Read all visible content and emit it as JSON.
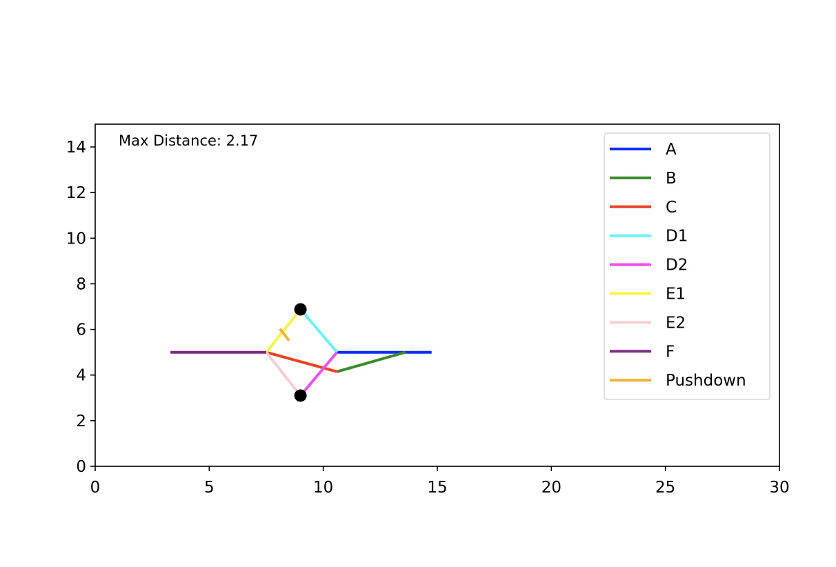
{
  "chart_data": {
    "type": "line",
    "title": "",
    "xlabel": "",
    "ylabel": "",
    "xlim": [
      0,
      30
    ],
    "ylim": [
      0,
      15
    ],
    "x_ticks": [
      0,
      5,
      10,
      15,
      20,
      25,
      30
    ],
    "y_ticks": [
      0,
      2,
      4,
      6,
      8,
      10,
      12,
      14
    ],
    "grid": false,
    "legend_position": "top-right",
    "annotation": "Max Distance: 2.17",
    "series": [
      {
        "name": "A",
        "color": "#0a2cf5",
        "points": [
          [
            10.6,
            5.0
          ],
          [
            14.75,
            5.0
          ]
        ]
      },
      {
        "name": "B",
        "color": "#3a8a2a",
        "points": [
          [
            10.6,
            4.15
          ],
          [
            13.6,
            5.0
          ]
        ]
      },
      {
        "name": "C",
        "color": "#ec4025",
        "points": [
          [
            7.5,
            5.0
          ],
          [
            10.6,
            4.15
          ]
        ]
      },
      {
        "name": "D1",
        "color": "#64f5f8",
        "points": [
          [
            9.0,
            6.88
          ],
          [
            10.6,
            5.0
          ]
        ]
      },
      {
        "name": "D2",
        "color": "#f04ef3",
        "points": [
          [
            9.0,
            3.1
          ],
          [
            10.6,
            5.0
          ]
        ]
      },
      {
        "name": "E1",
        "color": "#fbf542",
        "points": [
          [
            7.5,
            5.0
          ],
          [
            9.0,
            6.88
          ]
        ]
      },
      {
        "name": "E2",
        "color": "#f6cdd1",
        "points": [
          [
            7.5,
            5.0
          ],
          [
            9.0,
            3.1
          ]
        ]
      },
      {
        "name": "F",
        "color": "#7d2a89",
        "points": [
          [
            3.3,
            5.0
          ],
          [
            7.5,
            5.0
          ]
        ]
      },
      {
        "name": "Pushdown",
        "color": "#f4b23b",
        "points": [
          [
            8.1,
            6.03
          ],
          [
            8.5,
            5.5
          ]
        ]
      }
    ],
    "markers": [
      {
        "x": 9.0,
        "y": 6.88,
        "color": "#000000"
      },
      {
        "x": 9.0,
        "y": 3.1,
        "color": "#000000"
      }
    ]
  }
}
